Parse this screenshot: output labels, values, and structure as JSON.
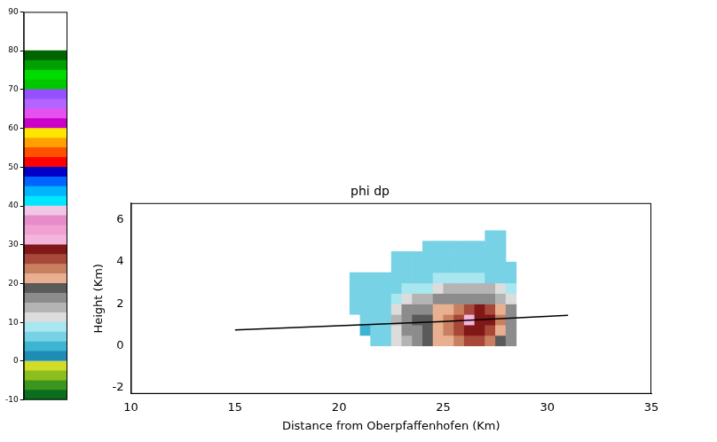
{
  "chart_data": {
    "type": "heatmap",
    "title": "phi dp",
    "x_label": "Distance from Oberpfaffenhofen (Km)",
    "y_label": "Height (Km)",
    "xlim": [
      10,
      35
    ],
    "xticks": [
      10,
      15,
      20,
      25,
      30,
      35
    ],
    "ylim": [
      -2.3,
      6.8
    ],
    "yticks": [
      -2,
      0,
      2,
      4,
      6
    ],
    "grid": false,
    "cells": {
      "x_bins": [
        20.5,
        21,
        21.5,
        22,
        22.5,
        23,
        23.5,
        24,
        24.5,
        25,
        25.5,
        26,
        26.5,
        27,
        27.5,
        28,
        28.5
      ],
      "y_bins": [
        0,
        0.5,
        1,
        1.5,
        2,
        2.5,
        3,
        3.5,
        4,
        4.5,
        5,
        5.5
      ],
      "values": [
        [
          null,
          null,
          6,
          7,
          11,
          14,
          16,
          18,
          20,
          22,
          24,
          26,
          25,
          23,
          19,
          15
        ],
        [
          null,
          4,
          6,
          7,
          12,
          15,
          17,
          19,
          21,
          23,
          25,
          28,
          28,
          26,
          22,
          17
        ],
        [
          null,
          5,
          6,
          7,
          13,
          16,
          18,
          19,
          22,
          24,
          26,
          32,
          29,
          28,
          23,
          17
        ],
        [
          6,
          6,
          7,
          7,
          12,
          15,
          16,
          17,
          21,
          22,
          23,
          27,
          28,
          27,
          22,
          16
        ],
        [
          6,
          6,
          7,
          7,
          8,
          12,
          13,
          14,
          15,
          15,
          16,
          17,
          17,
          16,
          14,
          12
        ],
        [
          5,
          6,
          6,
          7,
          7,
          8,
          8,
          9,
          12,
          13,
          14,
          14,
          14,
          13,
          12,
          8
        ],
        [
          5,
          5,
          6,
          6,
          6,
          7,
          7,
          7,
          8,
          8,
          8,
          8,
          8,
          7,
          7,
          7
        ],
        [
          null,
          null,
          null,
          null,
          6,
          6,
          7,
          7,
          7,
          7,
          7,
          7,
          7,
          7,
          6,
          6
        ],
        [
          null,
          null,
          null,
          null,
          6,
          6,
          6,
          6,
          7,
          7,
          7,
          7,
          6,
          6,
          6,
          null
        ],
        [
          null,
          null,
          null,
          null,
          null,
          null,
          null,
          6,
          6,
          6,
          6,
          6,
          6,
          6,
          6,
          null
        ],
        [
          null,
          null,
          null,
          null,
          null,
          null,
          null,
          null,
          null,
          null,
          null,
          null,
          null,
          6,
          6,
          null
        ]
      ]
    },
    "colorbar": {
      "lim": [
        -10,
        90
      ],
      "ticks": [
        -10,
        0,
        10,
        20,
        30,
        40,
        50,
        60,
        70,
        80,
        90
      ],
      "colors": [
        "#0a6e1e",
        "#3c961e",
        "#8cbe1e",
        "#d2dc28",
        "#1e8cb4",
        "#3cb4d2",
        "#78d2e6",
        "#a8e6f0",
        "#dcdcdc",
        "#b4b4b4",
        "#8c8c8c",
        "#5a5a5a",
        "#e8b090",
        "#c88060",
        "#a84838",
        "#801818",
        "#f5b4dc",
        "#f0a0d2",
        "#e68cc8",
        "#f0c8e6",
        "#00e6ff",
        "#00b4ff",
        "#0064ff",
        "#0000c8",
        "#ff0000",
        "#ff5000",
        "#ffa000",
        "#ffe600",
        "#c800c8",
        "#e650f0",
        "#b464ff",
        "#9650ff",
        "#00c800",
        "#00dc00",
        "#00a000",
        "#006400",
        "#ffffff",
        "#ffffff",
        "#ffffff",
        "#ffffff"
      ]
    },
    "series": [
      {
        "type": "line",
        "color": "#000000",
        "x": [
          15,
          20,
          25,
          31
        ],
        "values": [
          0.75,
          0.95,
          1.15,
          1.45
        ]
      }
    ]
  }
}
